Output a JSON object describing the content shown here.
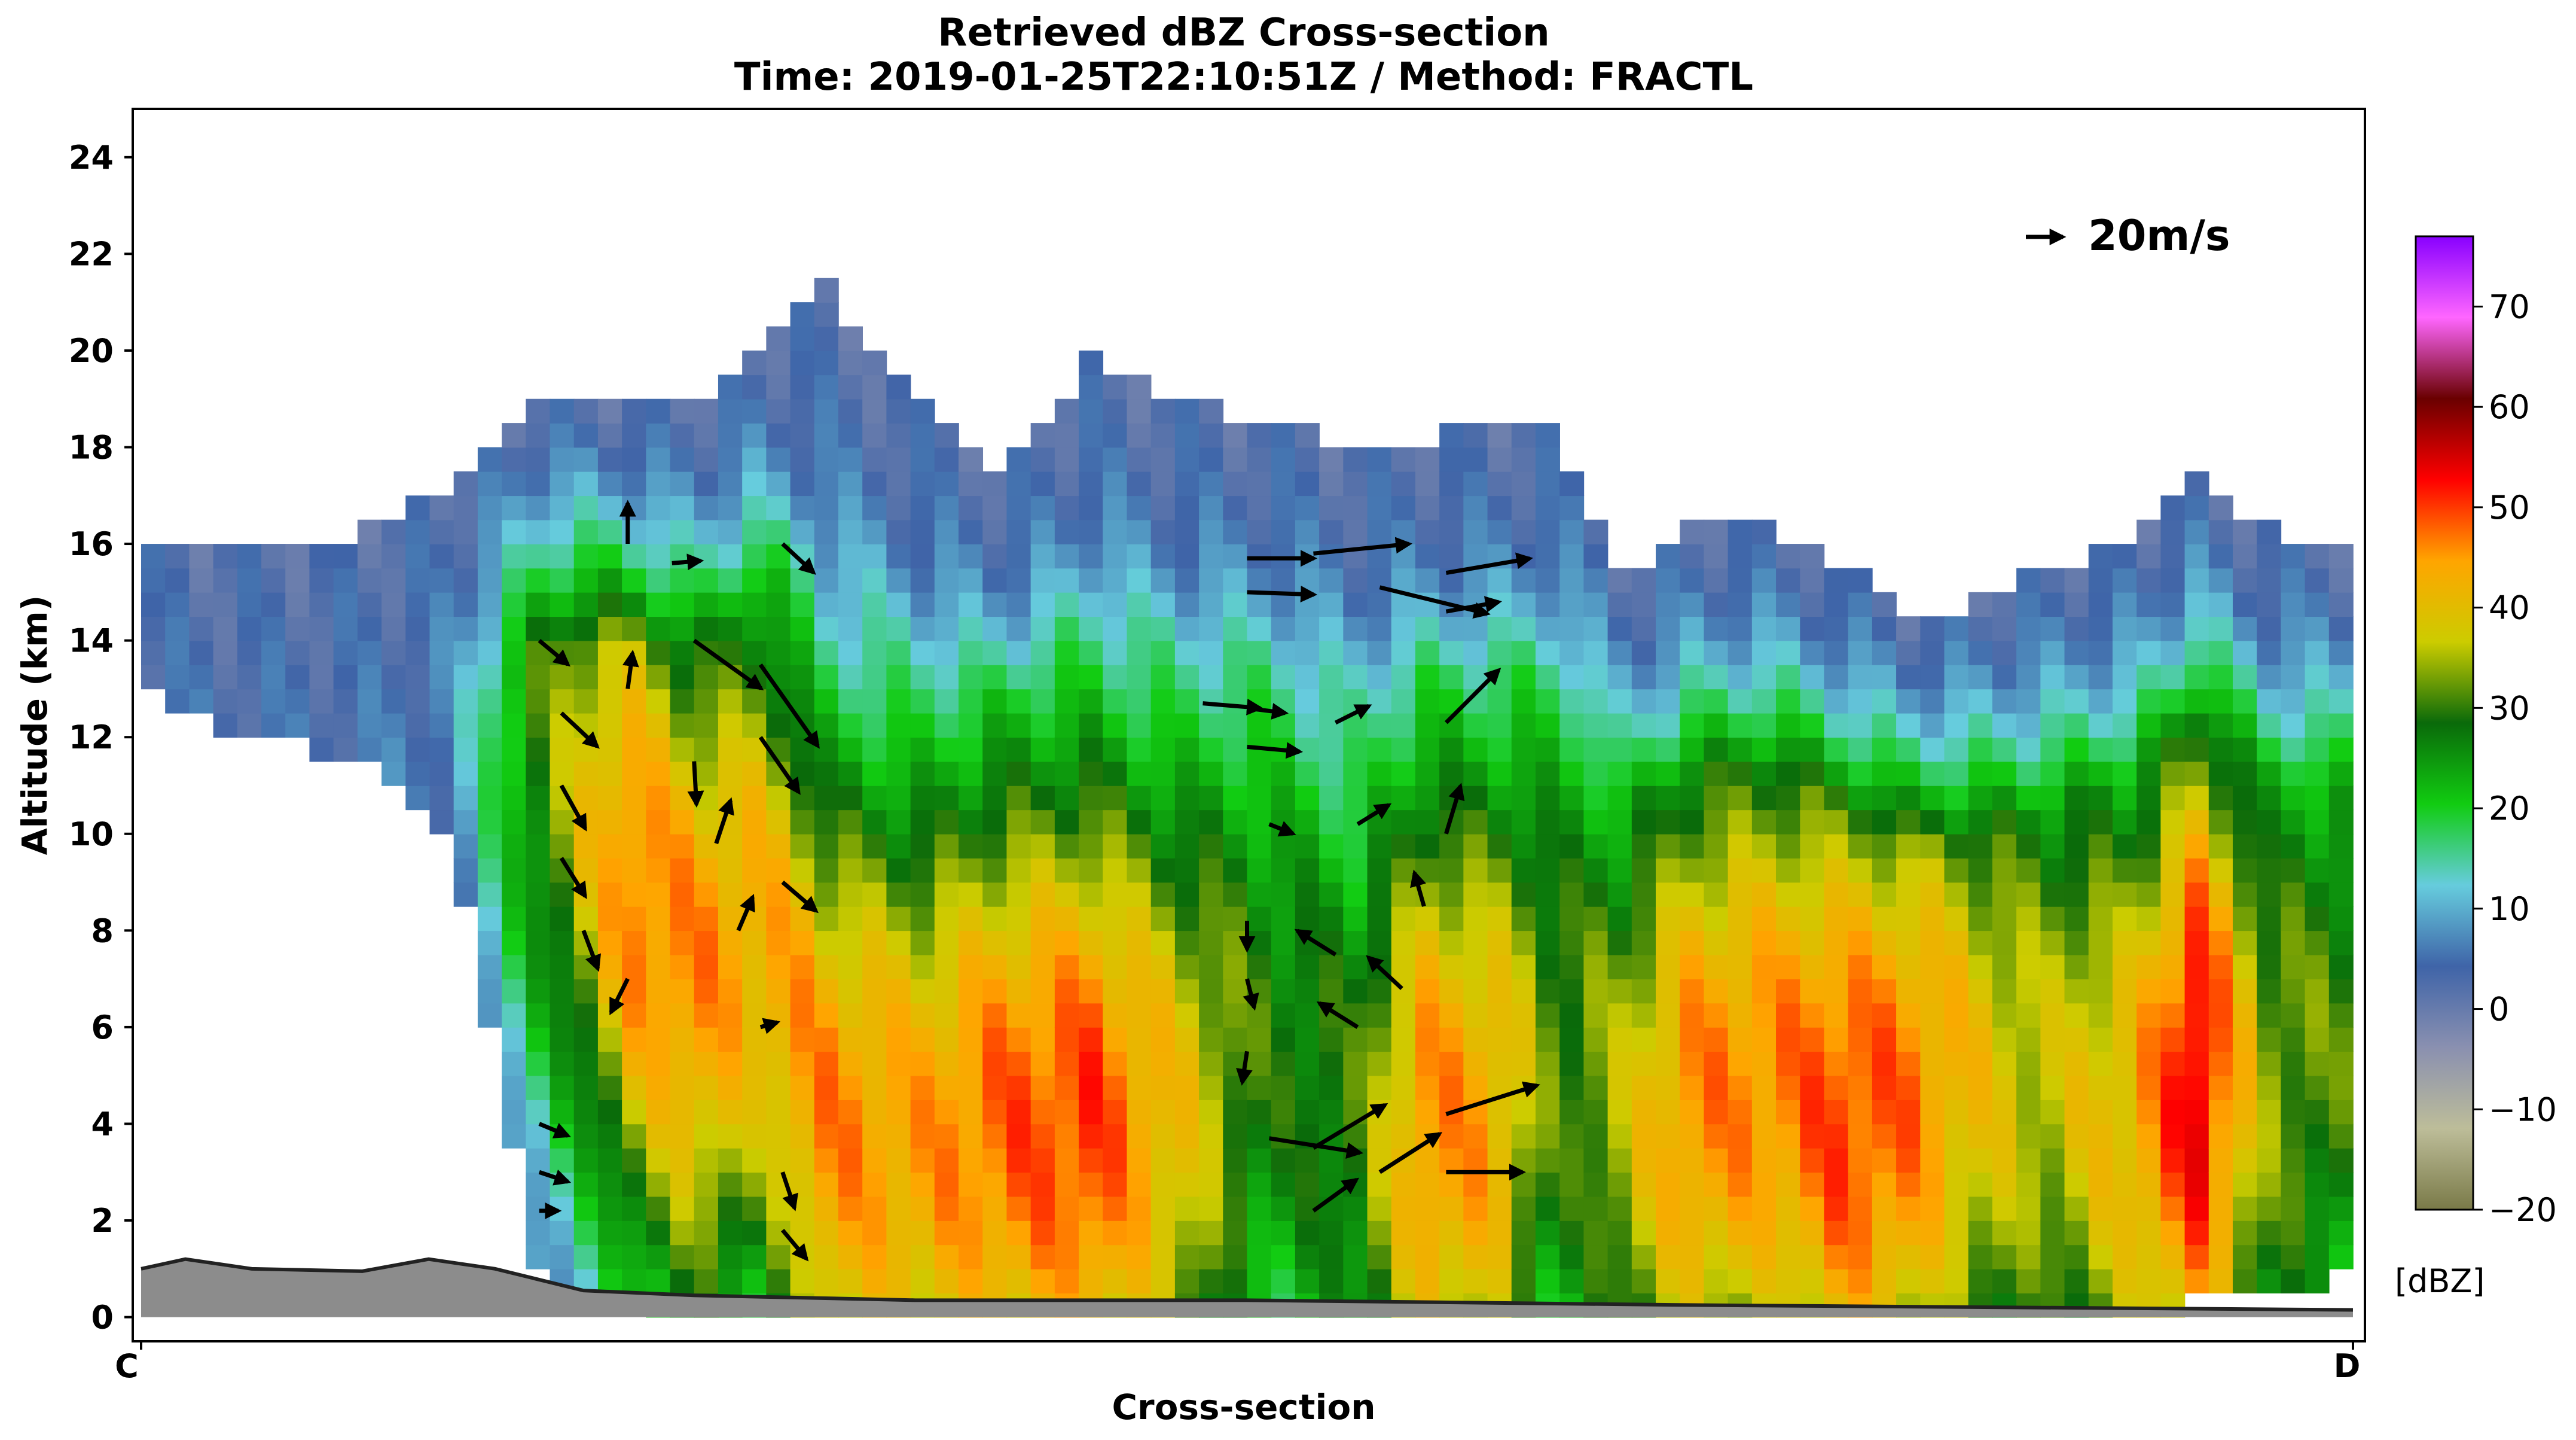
{
  "chart_data": {
    "type": "heatmap",
    "title": "Retrieved dBZ Cross-section",
    "subtitle": "Time: 2019-01-25T22:10:51Z / Method: FRACTL",
    "xlabel": "Cross-section",
    "ylabel": "Altitude (km)",
    "x_tick_labels": [
      "C",
      "D"
    ],
    "xlim": [
      0,
      1
    ],
    "ylim": [
      -0.5,
      25
    ],
    "y_ticks": [
      0,
      2,
      4,
      6,
      8,
      10,
      12,
      14,
      16,
      18,
      20,
      22,
      24
    ],
    "colorbar": {
      "label": "[dBZ]",
      "range": [
        -20,
        77
      ],
      "ticks": [
        -20,
        -10,
        0,
        10,
        20,
        30,
        40,
        50,
        60,
        70
      ],
      "colors": [
        "#7a7a48",
        "#bdbd99",
        "#8a90b0",
        "#3f64a8",
        "#66ccdd",
        "#11cc11",
        "#0a6a0a",
        "#cccc00",
        "#ffa500",
        "#ff0000",
        "#6a0000",
        "#ff66ff",
        "#8800ff"
      ]
    },
    "wind_key": {
      "label": "20m/s",
      "speed": 20
    },
    "terrain_label": "",
    "reflectivity_columns": [
      {
        "x": 0.0,
        "top": 16.3,
        "bottom": 12.9,
        "core": 5,
        "core_z": 14
      },
      {
        "x": 0.05,
        "top": 15.8,
        "bottom": 12.0,
        "core": 5,
        "core_z": 14
      },
      {
        "x": 0.1,
        "top": 16.3,
        "bottom": 11.5,
        "core": 5,
        "core_z": 14
      },
      {
        "x": 0.14,
        "top": 17.3,
        "bottom": 10.0,
        "core": 7,
        "core_z": 14
      },
      {
        "x": 0.18,
        "top": 18.8,
        "bottom": 0.6,
        "core": 30,
        "core_z": 12
      },
      {
        "x": 0.22,
        "top": 18.8,
        "bottom": 0.3,
        "core": 47,
        "core_z": 9
      },
      {
        "x": 0.25,
        "top": 18.8,
        "bottom": 0.0,
        "core": 46,
        "core_z": 7
      },
      {
        "x": 0.28,
        "top": 20.0,
        "bottom": 0.0,
        "core": 43,
        "core_z": 8
      },
      {
        "x": 0.31,
        "top": 21.3,
        "bottom": 0.0,
        "core": 46,
        "core_z": 4
      },
      {
        "x": 0.35,
        "top": 19.0,
        "bottom": 0.0,
        "core": 44,
        "core_z": 3.5
      },
      {
        "x": 0.39,
        "top": 17.5,
        "bottom": 0.0,
        "core": 48,
        "core_z": 4
      },
      {
        "x": 0.43,
        "top": 19.8,
        "bottom": 0.0,
        "core": 50,
        "core_z": 4
      },
      {
        "x": 0.47,
        "top": 19.0,
        "bottom": 0.0,
        "core": 40,
        "core_z": 4
      },
      {
        "x": 0.51,
        "top": 18.5,
        "bottom": 0.0,
        "core": 28,
        "core_z": 6
      },
      {
        "x": 0.55,
        "top": 18.0,
        "bottom": 0.0,
        "core": 30,
        "core_z": 4
      },
      {
        "x": 0.58,
        "top": 18.2,
        "bottom": 0.0,
        "core": 46,
        "core_z": 4
      },
      {
        "x": 0.61,
        "top": 18.4,
        "bottom": 0.0,
        "core": 44,
        "core_z": 4
      },
      {
        "x": 0.64,
        "top": 18.4,
        "bottom": 0.0,
        "core": 30,
        "core_z": 6
      },
      {
        "x": 0.67,
        "top": 15.5,
        "bottom": 0.0,
        "core": 36,
        "core_z": 4
      },
      {
        "x": 0.7,
        "top": 16.3,
        "bottom": 0.0,
        "core": 46,
        "core_z": 4.5
      },
      {
        "x": 0.74,
        "top": 16.3,
        "bottom": 0.0,
        "core": 46,
        "core_z": 5
      },
      {
        "x": 0.77,
        "top": 15.5,
        "bottom": 0.0,
        "core": 50,
        "core_z": 4
      },
      {
        "x": 0.8,
        "top": 14.5,
        "bottom": 0.0,
        "core": 47,
        "core_z": 4.5
      },
      {
        "x": 0.83,
        "top": 14.8,
        "bottom": 0.0,
        "core": 40,
        "core_z": 5
      },
      {
        "x": 0.86,
        "top": 15.4,
        "bottom": 0.0,
        "core": 36,
        "core_z": 5
      },
      {
        "x": 0.9,
        "top": 16.3,
        "bottom": 0.0,
        "core": 42,
        "core_z": 4
      },
      {
        "x": 0.93,
        "top": 17.3,
        "bottom": 0.4,
        "core": 55,
        "core_z": 5
      },
      {
        "x": 0.96,
        "top": 16.3,
        "bottom": 0.4,
        "core": 34,
        "core_z": 5
      },
      {
        "x": 1.0,
        "top": 15.8,
        "bottom": 0.9,
        "core": 30,
        "core_z": 6
      }
    ],
    "wind_vectors": [
      {
        "x": 0.18,
        "z": 14.0,
        "u": 1.2,
        "w": -1.0
      },
      {
        "x": 0.19,
        "z": 12.5,
        "u": 1.5,
        "w": -1.4
      },
      {
        "x": 0.19,
        "z": 11.0,
        "u": 1.0,
        "w": -1.8
      },
      {
        "x": 0.19,
        "z": 9.5,
        "u": 1.0,
        "w": -1.6
      },
      {
        "x": 0.2,
        "z": 8.0,
        "u": 0.6,
        "w": -1.6
      },
      {
        "x": 0.22,
        "z": 16.0,
        "u": 0.0,
        "w": 1.7
      },
      {
        "x": 0.22,
        "z": 13.0,
        "u": 0.2,
        "w": 1.5
      },
      {
        "x": 0.22,
        "z": 7.0,
        "u": -0.7,
        "w": -1.4
      },
      {
        "x": 0.24,
        "z": 15.6,
        "u": 1.2,
        "w": 0.1
      },
      {
        "x": 0.25,
        "z": 14.0,
        "u": 2.8,
        "w": -2.0
      },
      {
        "x": 0.25,
        "z": 11.5,
        "u": 0.1,
        "w": -1.8
      },
      {
        "x": 0.26,
        "z": 9.8,
        "u": 0.6,
        "w": 1.8
      },
      {
        "x": 0.27,
        "z": 8.0,
        "u": 0.6,
        "w": 1.4
      },
      {
        "x": 0.28,
        "z": 12.0,
        "u": 1.6,
        "w": -2.3
      },
      {
        "x": 0.29,
        "z": 9.0,
        "u": 1.4,
        "w": -1.2
      },
      {
        "x": 0.28,
        "z": 6.0,
        "u": 0.7,
        "w": 0.2
      },
      {
        "x": 0.29,
        "z": 16.0,
        "u": 1.3,
        "w": -1.2
      },
      {
        "x": 0.28,
        "z": 13.5,
        "u": 2.4,
        "w": -3.4
      },
      {
        "x": 0.29,
        "z": 3.0,
        "u": 0.5,
        "w": -1.5
      },
      {
        "x": 0.29,
        "z": 1.8,
        "u": 1.0,
        "w": -1.2
      },
      {
        "x": 0.18,
        "z": 4.0,
        "u": 1.2,
        "w": -0.5
      },
      {
        "x": 0.18,
        "z": 3.0,
        "u": 1.2,
        "w": -0.4
      },
      {
        "x": 0.18,
        "z": 2.2,
        "u": 0.8,
        "w": 0.0
      },
      {
        "x": 0.48,
        "z": 12.7,
        "u": 2.4,
        "w": -0.2
      },
      {
        "x": 0.5,
        "z": 12.6,
        "u": 1.6,
        "w": -0.2
      },
      {
        "x": 0.5,
        "z": 11.8,
        "u": 2.2,
        "w": -0.2
      },
      {
        "x": 0.51,
        "z": 10.2,
        "u": 1.0,
        "w": -0.4
      },
      {
        "x": 0.5,
        "z": 8.2,
        "u": 0.0,
        "w": -1.2
      },
      {
        "x": 0.5,
        "z": 7.0,
        "u": 0.3,
        "w": -1.2
      },
      {
        "x": 0.5,
        "z": 5.5,
        "u": -0.2,
        "w": -1.3
      },
      {
        "x": 0.51,
        "z": 3.7,
        "u": 3.8,
        "w": -0.6
      },
      {
        "x": 0.5,
        "z": 15.7,
        "u": 2.8,
        "w": 0.0
      },
      {
        "x": 0.5,
        "z": 15.0,
        "u": 2.8,
        "w": -0.1
      },
      {
        "x": 0.53,
        "z": 15.8,
        "u": 4.0,
        "w": 0.4
      },
      {
        "x": 0.56,
        "z": 15.1,
        "u": 4.5,
        "w": -1.1
      },
      {
        "x": 0.59,
        "z": 15.4,
        "u": 3.5,
        "w": 0.6
      },
      {
        "x": 0.59,
        "z": 14.6,
        "u": 2.2,
        "w": 0.4
      },
      {
        "x": 0.59,
        "z": 12.3,
        "u": 2.2,
        "w": 2.2
      },
      {
        "x": 0.59,
        "z": 10.0,
        "u": 0.6,
        "w": 2.0
      },
      {
        "x": 0.58,
        "z": 8.5,
        "u": -0.4,
        "w": 1.4
      },
      {
        "x": 0.57,
        "z": 6.8,
        "u": -1.4,
        "w": 1.3
      },
      {
        "x": 0.54,
        "z": 12.3,
        "u": 1.4,
        "w": 0.7
      },
      {
        "x": 0.55,
        "z": 10.2,
        "u": 1.3,
        "w": 0.8
      },
      {
        "x": 0.54,
        "z": 7.5,
        "u": -1.6,
        "w": 1.0
      },
      {
        "x": 0.55,
        "z": 6.0,
        "u": -1.6,
        "w": 1.0
      },
      {
        "x": 0.53,
        "z": 3.5,
        "u": 3.0,
        "w": 1.8
      },
      {
        "x": 0.56,
        "z": 3.0,
        "u": 2.5,
        "w": 1.6
      },
      {
        "x": 0.59,
        "z": 4.2,
        "u": 3.8,
        "w": 1.2
      },
      {
        "x": 0.59,
        "z": 3.0,
        "u": 3.2,
        "w": 0.0
      },
      {
        "x": 0.53,
        "z": 2.2,
        "u": 1.8,
        "w": 1.3
      }
    ]
  }
}
